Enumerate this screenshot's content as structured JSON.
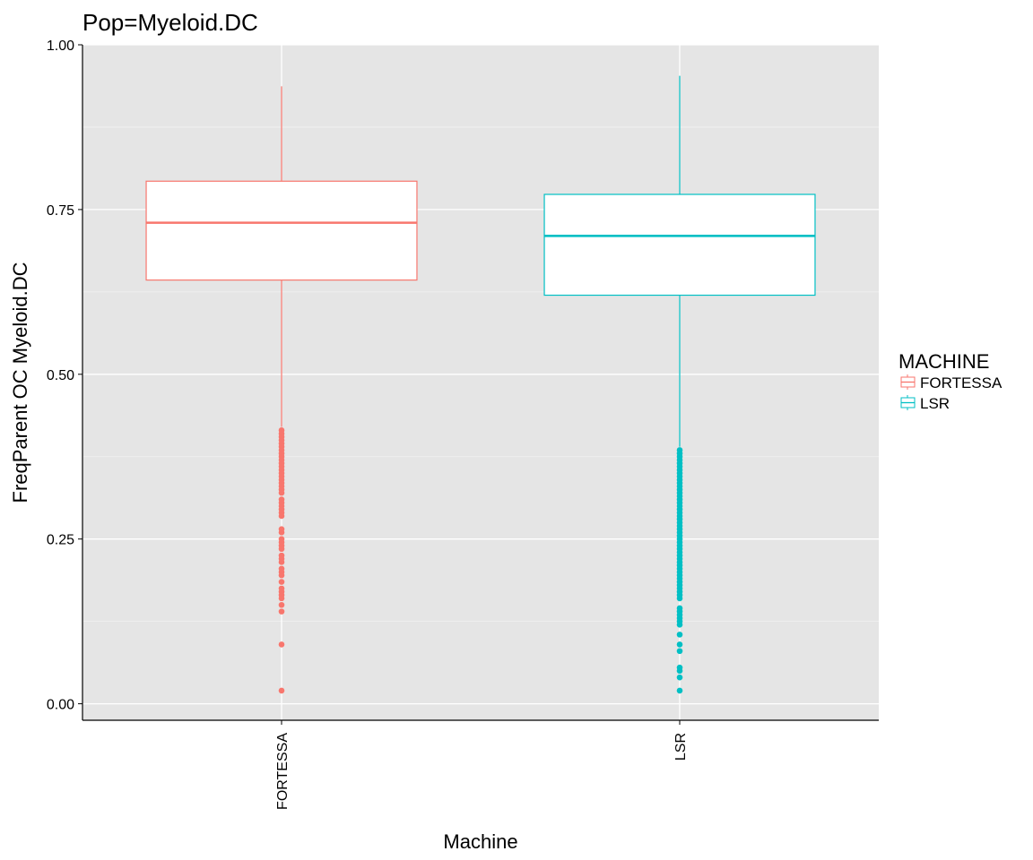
{
  "chart_data": {
    "type": "boxplot",
    "title": "Pop=Myeloid.DC",
    "xlabel": "Machine",
    "ylabel": "FreqParent OC  Myeloid.DC",
    "ylim": [
      -0.025,
      1.0
    ],
    "yticks": [
      0.0,
      0.25,
      0.5,
      0.75,
      1.0
    ],
    "ytick_labels": [
      "0.00",
      "0.25",
      "0.50",
      "0.75",
      "1.00"
    ],
    "categories": [
      "FORTESSA",
      "LSR"
    ],
    "grid": true,
    "legend": {
      "title": "MACHINE",
      "position": "right",
      "entries": [
        "FORTESSA",
        "LSR"
      ]
    },
    "series": [
      {
        "name": "FORTESSA",
        "color": "#F8766D",
        "whisker_low": 0.42,
        "q1": 0.643,
        "median": 0.73,
        "q3": 0.793,
        "whisker_high": 0.937,
        "outliers": [
          0.415,
          0.41,
          0.405,
          0.4,
          0.395,
          0.39,
          0.385,
          0.38,
          0.375,
          0.37,
          0.365,
          0.36,
          0.355,
          0.35,
          0.345,
          0.34,
          0.335,
          0.33,
          0.325,
          0.32,
          0.31,
          0.305,
          0.3,
          0.295,
          0.29,
          0.285,
          0.265,
          0.26,
          0.25,
          0.245,
          0.24,
          0.235,
          0.225,
          0.22,
          0.215,
          0.205,
          0.2,
          0.195,
          0.185,
          0.175,
          0.17,
          0.165,
          0.16,
          0.15,
          0.14,
          0.09,
          0.02
        ]
      },
      {
        "name": "LSR",
        "color": "#00BFC4",
        "whisker_low": 0.39,
        "q1": 0.62,
        "median": 0.71,
        "q3": 0.773,
        "whisker_high": 0.953,
        "outliers": [
          0.385,
          0.38,
          0.375,
          0.37,
          0.365,
          0.36,
          0.355,
          0.35,
          0.345,
          0.34,
          0.335,
          0.33,
          0.325,
          0.32,
          0.315,
          0.31,
          0.305,
          0.3,
          0.295,
          0.29,
          0.285,
          0.28,
          0.275,
          0.27,
          0.265,
          0.26,
          0.255,
          0.25,
          0.245,
          0.24,
          0.235,
          0.23,
          0.225,
          0.22,
          0.215,
          0.21,
          0.205,
          0.2,
          0.195,
          0.19,
          0.185,
          0.18,
          0.175,
          0.17,
          0.165,
          0.16,
          0.145,
          0.14,
          0.135,
          0.13,
          0.125,
          0.12,
          0.105,
          0.09,
          0.08,
          0.055,
          0.05,
          0.04,
          0.02
        ]
      }
    ]
  }
}
